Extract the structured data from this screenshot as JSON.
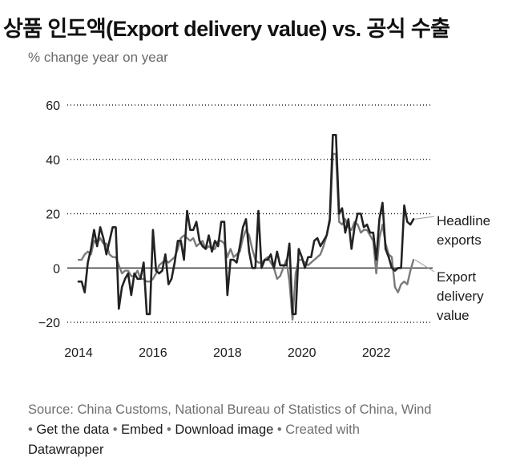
{
  "title": "상품 인도액(Export delivery value) vs. 공식 수출",
  "subtitle": "% change year on year",
  "chart_data": {
    "type": "line",
    "ylim": [
      -20,
      60
    ],
    "yticks": [
      "−20",
      "0",
      "20",
      "40",
      "60"
    ],
    "ytick_values": [
      -20,
      0,
      20,
      40,
      60
    ],
    "xlim": [
      2014,
      2023.45
    ],
    "xticks": [
      "2014",
      "2016",
      "2018",
      "2020",
      "2022"
    ],
    "xtick_values": [
      2014,
      2016,
      2018,
      2020,
      2022
    ],
    "grid": "horizontal dotted",
    "series": [
      {
        "name": "Headline exports",
        "label_lines": [
          "Headline",
          "exports"
        ],
        "color": "#222222",
        "x_start": 2014.0,
        "x_step": 0.08333,
        "values": [
          -5,
          -5,
          -9,
          2,
          7,
          14,
          8,
          15,
          11,
          5,
          10,
          15,
          15,
          -15,
          -7,
          -4,
          -2,
          -10,
          -2,
          -4,
          -4,
          2,
          -17,
          -17,
          14,
          -1,
          -2,
          -1,
          5,
          -6,
          -4,
          2,
          10,
          10,
          3,
          21,
          14,
          14,
          17,
          10,
          8,
          7,
          12,
          6,
          10,
          8,
          17,
          17,
          -10,
          3,
          3,
          2,
          8,
          15,
          18,
          6,
          0,
          0,
          21,
          0,
          3,
          3,
          5,
          0,
          6,
          1,
          1,
          1,
          9,
          -17,
          -17,
          7,
          4,
          0,
          4,
          4,
          10,
          11,
          8,
          10,
          12,
          18,
          49,
          49,
          20,
          22,
          13,
          18,
          7,
          15,
          20,
          20,
          15,
          16,
          13,
          13,
          3,
          18,
          24,
          7,
          4,
          0,
          -1,
          0,
          0,
          23,
          17,
          16,
          18
        ]
      },
      {
        "name": "Export delivery value",
        "label_lines": [
          "Export",
          "delivery",
          "value"
        ],
        "color": "#7a7a7a",
        "x_start": 2014.0,
        "x_step": 0.08333,
        "values": [
          3,
          3,
          5,
          6,
          5,
          10,
          9,
          11,
          9,
          9,
          5,
          4,
          4,
          1,
          -2,
          -1,
          -1,
          -3,
          -3,
          -1,
          -4,
          -4,
          -5,
          -5,
          -4,
          -2,
          1,
          2,
          3,
          2,
          3,
          4,
          7,
          11,
          12,
          11,
          10,
          11,
          8,
          9,
          10,
          7,
          8,
          7,
          7,
          10,
          10,
          9,
          4,
          7,
          4,
          5,
          6,
          11,
          14,
          12,
          7,
          3,
          2,
          2,
          3,
          4,
          2,
          0,
          -4,
          -3,
          0,
          3,
          -5,
          -19,
          -2,
          3,
          3,
          2,
          1,
          2,
          3,
          4,
          5,
          8,
          12,
          17,
          42,
          42,
          17,
          16,
          18,
          15,
          14,
          17,
          16,
          13,
          14,
          14,
          12,
          10,
          -2,
          11,
          16,
          9,
          5,
          4,
          -7,
          -9,
          -6,
          -5,
          -6,
          -1,
          3
        ]
      }
    ]
  },
  "footer": {
    "source": "Source: China Customs, National Bureau of Statistics of China, Wind",
    "separator": " • ",
    "links": [
      "Get the data",
      "Embed",
      "Download image"
    ],
    "created": "Created with",
    "brand": "Datawrapper"
  }
}
